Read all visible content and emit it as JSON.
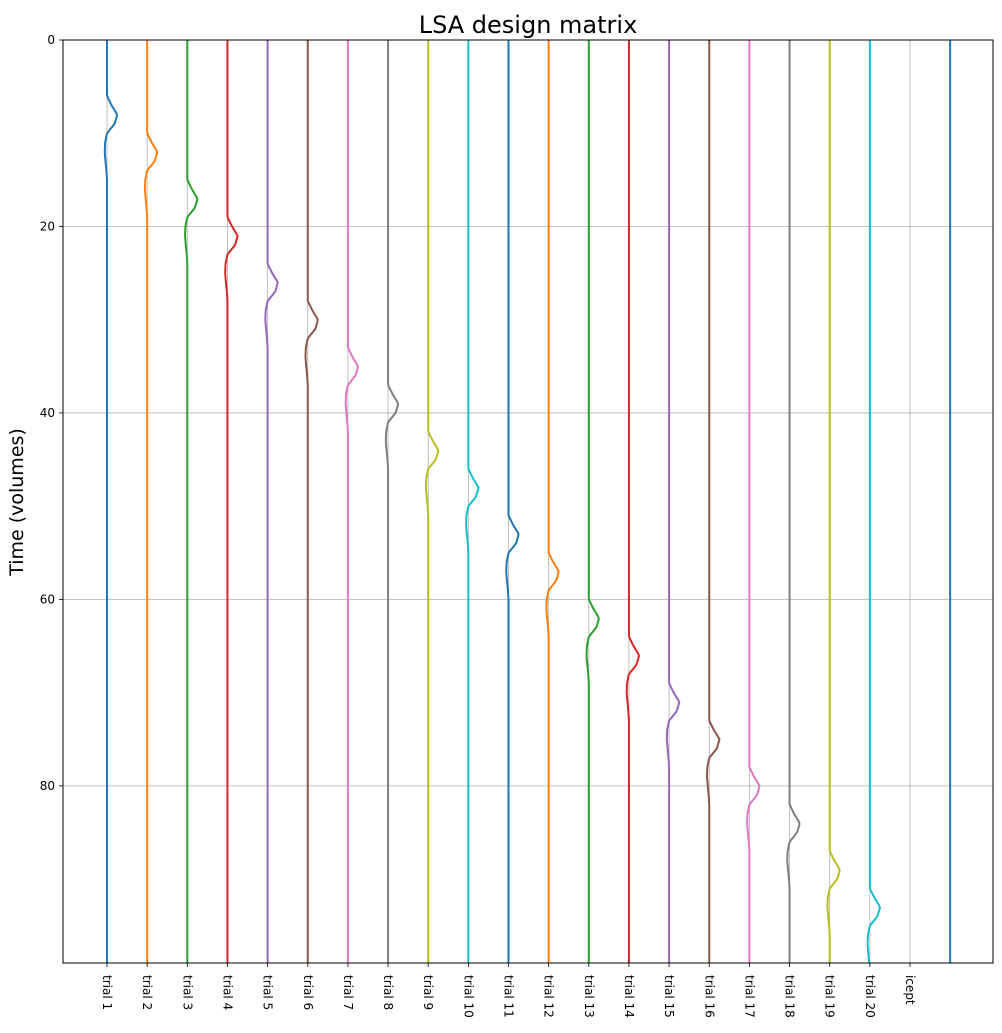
{
  "chart_data": {
    "type": "line",
    "title": "LSA design matrix",
    "ylabel": "Time (volumes)",
    "xlabel": "",
    "y_inverted": true,
    "ylim": [
      0,
      99
    ],
    "y_ticks": [
      0,
      20,
      40,
      60,
      80
    ],
    "grid": true,
    "legend": "none",
    "orientation": "vertical traces, one column per regressor",
    "columns": [
      "trial 1",
      "trial 2",
      "trial 3",
      "trial 4",
      "trial 5",
      "trial 6",
      "trial 7",
      "trial 8",
      "trial 9",
      "trial 10",
      "trial 11",
      "trial 12",
      "trial 13",
      "trial 14",
      "trial 15",
      "trial 16",
      "trial 17",
      "trial 18",
      "trial 19",
      "trial 20",
      "icept"
    ],
    "hrf_shape": {
      "time_offset": [
        0,
        1,
        2,
        3,
        4,
        5,
        6,
        7,
        8,
        9
      ],
      "amplitude": [
        0.0,
        0.12,
        0.27,
        0.2,
        0.0,
        -0.05,
        -0.06,
        -0.04,
        -0.015,
        0.0
      ]
    },
    "series": [
      {
        "name": "trial 1",
        "onset": 6,
        "color": "#1f77b4"
      },
      {
        "name": "trial 2",
        "onset": 10,
        "color": "#ff7f0e"
      },
      {
        "name": "trial 3",
        "onset": 15,
        "color": "#2ca02c"
      },
      {
        "name": "trial 4",
        "onset": 19,
        "color": "#d62728"
      },
      {
        "name": "trial 5",
        "onset": 24,
        "color": "#9467bd"
      },
      {
        "name": "trial 6",
        "onset": 28,
        "color": "#8c564b"
      },
      {
        "name": "trial 7",
        "onset": 33,
        "color": "#e377c2"
      },
      {
        "name": "trial 8",
        "onset": 37,
        "color": "#7f7f7f"
      },
      {
        "name": "trial 9",
        "onset": 42,
        "color": "#bcbd22"
      },
      {
        "name": "trial 10",
        "onset": 46,
        "color": "#17becf"
      },
      {
        "name": "trial 11",
        "onset": 51,
        "color": "#1f77b4"
      },
      {
        "name": "trial 12",
        "onset": 55,
        "color": "#ff7f0e"
      },
      {
        "name": "trial 13",
        "onset": 60,
        "color": "#2ca02c"
      },
      {
        "name": "trial 14",
        "onset": 64,
        "color": "#d62728"
      },
      {
        "name": "trial 15",
        "onset": 69,
        "color": "#9467bd"
      },
      {
        "name": "trial 16",
        "onset": 73,
        "color": "#8c564b"
      },
      {
        "name": "trial 17",
        "onset": 78,
        "color": "#e377c2"
      },
      {
        "name": "trial 18",
        "onset": 82,
        "color": "#7f7f7f"
      },
      {
        "name": "trial 19",
        "onset": 87,
        "color": "#bcbd22"
      },
      {
        "name": "trial 20",
        "onset": 91,
        "color": "#17becf"
      },
      {
        "name": "icept",
        "onset": null,
        "color": "#1f77b4"
      }
    ]
  }
}
